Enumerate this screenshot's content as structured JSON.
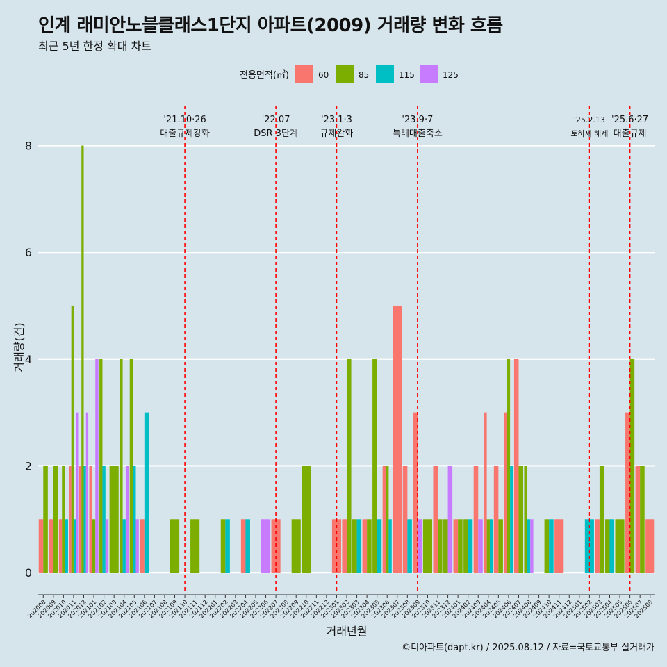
{
  "title": "인계 래미안노블클래스1단지 아파트(2009) 거래량 변화 흐름",
  "subtitle": "최근 5년 한정 확대 차트",
  "caption": "©디아파트(dapt.kr) / 2025.08.12 / 자료=국토교통부 실거래가",
  "chart_data": {
    "type": "bar",
    "xlabel": "거래년월",
    "ylabel": "거래량(건)",
    "ylim": [
      -0.35,
      8.8
    ],
    "yticks": [
      0,
      2,
      4,
      6,
      8
    ],
    "grid": true,
    "legend": {
      "title": "전용면적(㎡)",
      "position": "top"
    },
    "series": [
      {
        "name": "60",
        "color": "#f8766d"
      },
      {
        "name": "85",
        "color": "#7cae00"
      },
      {
        "name": "115",
        "color": "#00bfc4"
      },
      {
        "name": "125",
        "color": "#c77cff"
      }
    ],
    "categories": [
      "202008",
      "202009",
      "202010",
      "202011",
      "202012",
      "202101",
      "202102",
      "202103",
      "202104",
      "202105",
      "202106",
      "202107",
      "202108",
      "202109",
      "202110",
      "202111",
      "202112",
      "202201",
      "202202",
      "202203",
      "202204",
      "202205",
      "202206",
      "202207",
      "202208",
      "202209",
      "202210",
      "202211",
      "202212",
      "202301",
      "202302",
      "202303",
      "202304",
      "202305",
      "202306",
      "202307",
      "202308",
      "202309",
      "202310",
      "202311",
      "202312",
      "202401",
      "202402",
      "202403",
      "202404",
      "202405",
      "202406",
      "202407",
      "202408",
      "202409",
      "202410",
      "202411",
      "202412",
      "202501",
      "202502",
      "202503",
      "202504",
      "202505",
      "202506",
      "202507",
      "202508"
    ],
    "bars": [
      {
        "month": "202008",
        "values": {
          "60": 1,
          "85": 2
        }
      },
      {
        "month": "202009",
        "values": {
          "60": 1,
          "85": 2
        }
      },
      {
        "month": "202010",
        "values": {
          "60": 1,
          "85": 2,
          "115": 1
        }
      },
      {
        "month": "202011",
        "values": {
          "60": 2,
          "85": 5,
          "115": 1,
          "125": 3
        }
      },
      {
        "month": "202012",
        "values": {
          "60": 2,
          "85": 8,
          "115": 2,
          "125": 3
        }
      },
      {
        "month": "202101",
        "values": {
          "60": 2,
          "85": 1,
          "125": 4
        }
      },
      {
        "month": "202102",
        "values": {
          "85": 4,
          "115": 2,
          "125": 1
        }
      },
      {
        "month": "202103",
        "values": {
          "85": 2
        }
      },
      {
        "month": "202104",
        "values": {
          "85": 4,
          "115": 1,
          "125": 2
        }
      },
      {
        "month": "202105",
        "values": {
          "85": 4,
          "115": 2,
          "125": 1
        }
      },
      {
        "month": "202106",
        "values": {
          "60": 1,
          "115": 3
        }
      },
      {
        "month": "202107",
        "values": {}
      },
      {
        "month": "202108",
        "values": {}
      },
      {
        "month": "202109",
        "values": {
          "85": 1
        }
      },
      {
        "month": "202110",
        "values": {}
      },
      {
        "month": "202111",
        "values": {
          "85": 1
        }
      },
      {
        "month": "202112",
        "values": {}
      },
      {
        "month": "202201",
        "values": {}
      },
      {
        "month": "202202",
        "values": {
          "85": 1,
          "115": 1
        }
      },
      {
        "month": "202203",
        "values": {}
      },
      {
        "month": "202204",
        "values": {
          "60": 1,
          "115": 1
        }
      },
      {
        "month": "202205",
        "values": {}
      },
      {
        "month": "202206",
        "values": {
          "125": 1
        }
      },
      {
        "month": "202207",
        "values": {
          "60": 1
        }
      },
      {
        "month": "202208",
        "values": {}
      },
      {
        "month": "202209",
        "values": {
          "85": 1
        }
      },
      {
        "month": "202210",
        "values": {
          "85": 2
        }
      },
      {
        "month": "202211",
        "values": {}
      },
      {
        "month": "202212",
        "values": {}
      },
      {
        "month": "202301",
        "values": {
          "60": 1
        }
      },
      {
        "month": "202302",
        "values": {
          "60": 1,
          "85": 4
        }
      },
      {
        "month": "202303",
        "values": {
          "85": 1,
          "115": 1
        }
      },
      {
        "month": "202304",
        "values": {
          "60": 1,
          "85": 1
        }
      },
      {
        "month": "202305",
        "values": {
          "85": 4,
          "115": 1
        }
      },
      {
        "month": "202306",
        "values": {
          "60": 2,
          "85": 2,
          "115": 1
        }
      },
      {
        "month": "202307",
        "values": {
          "60": 5
        }
      },
      {
        "month": "202308",
        "values": {
          "60": 2,
          "115": 1
        }
      },
      {
        "month": "202309",
        "values": {
          "60": 3,
          "125": 1
        }
      },
      {
        "month": "202310",
        "values": {
          "85": 1
        }
      },
      {
        "month": "202311",
        "values": {
          "60": 2,
          "85": 1
        }
      },
      {
        "month": "202312",
        "values": {
          "85": 1,
          "125": 2
        }
      },
      {
        "month": "202401",
        "values": {
          "60": 1,
          "85": 1
        }
      },
      {
        "month": "202402",
        "values": {
          "85": 1,
          "115": 1
        }
      },
      {
        "month": "202403",
        "values": {
          "60": 2,
          "125": 1
        }
      },
      {
        "month": "202404",
        "values": {
          "60": 3,
          "85": 1,
          "115": 1
        }
      },
      {
        "month": "202405",
        "values": {
          "60": 2,
          "85": 1
        }
      },
      {
        "month": "202406",
        "values": {
          "60": 3,
          "85": 4,
          "115": 2
        }
      },
      {
        "month": "202407",
        "values": {
          "60": 4,
          "85": 2
        }
      },
      {
        "month": "202408",
        "values": {
          "85": 2,
          "115": 1,
          "125": 1
        }
      },
      {
        "month": "202409",
        "values": {}
      },
      {
        "month": "202410",
        "values": {
          "85": 1,
          "115": 1
        }
      },
      {
        "month": "202411",
        "values": {
          "60": 1
        }
      },
      {
        "month": "202412",
        "values": {}
      },
      {
        "month": "202501",
        "values": {}
      },
      {
        "month": "202502",
        "values": {
          "115": 1
        }
      },
      {
        "month": "202503",
        "values": {
          "60": 1,
          "85": 2
        }
      },
      {
        "month": "202504",
        "values": {
          "85": 1,
          "115": 1
        }
      },
      {
        "month": "202505",
        "values": {
          "85": 1
        }
      },
      {
        "month": "202506",
        "values": {
          "60": 3,
          "85": 4
        }
      },
      {
        "month": "202507",
        "values": {
          "60": 2,
          "85": 2
        }
      },
      {
        "month": "202508",
        "values": {
          "60": 1
        }
      }
    ],
    "annotations": [
      {
        "x": "202110",
        "line1": "'21.10·26",
        "line2": "대출규제강화"
      },
      {
        "x": "202207",
        "line1": "'22.07",
        "line2": "DSR 3단계"
      },
      {
        "x": "202301",
        "line1": "'23.1·3",
        "line2": "규제완화"
      },
      {
        "x": "202309",
        "line1": "'23.9·7",
        "line2": "특례대출축소"
      },
      {
        "x": "202502",
        "line1": "'25.2.13",
        "line2": "토허제 해제",
        "small": true
      },
      {
        "x": "202506",
        "line1": "'25.6·27",
        "line2": "대출규제"
      }
    ]
  }
}
